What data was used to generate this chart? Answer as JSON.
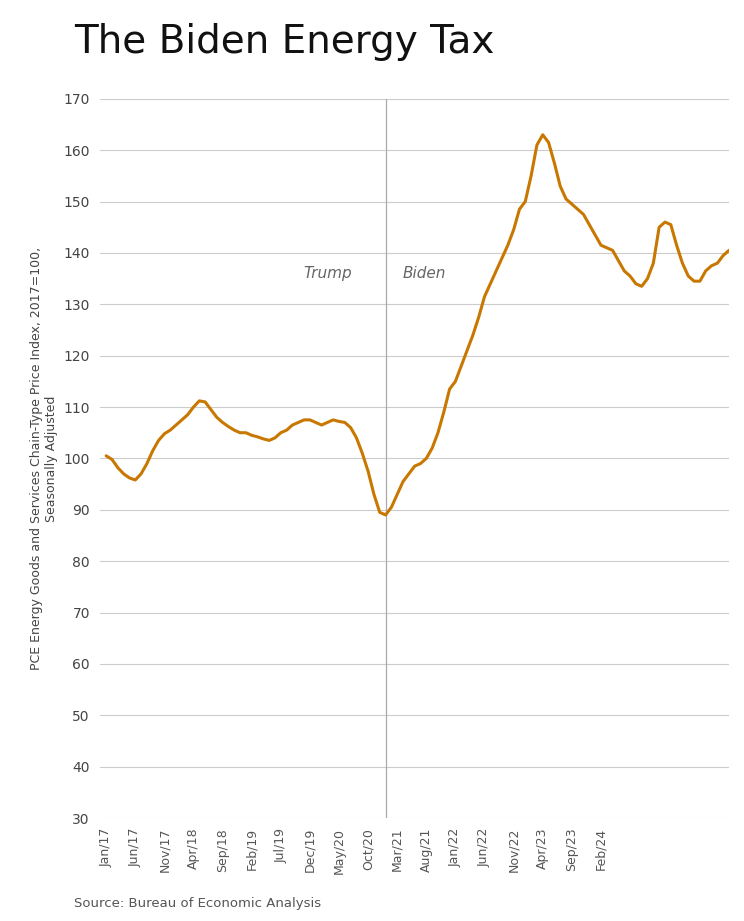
{
  "title": "The Biden Energy Tax",
  "ylabel": "PCE Energy Goods and Services Chain-Type Price Index, 2017=100,\nSeasonally Adjusted",
  "source": "Source: Bureau of Economic Analysis",
  "line_color": "#C87800",
  "background_color": "#ffffff",
  "grid_color": "#cccccc",
  "vline_color": "#aaaaaa",
  "ylim": [
    30,
    170
  ],
  "yticks": [
    30,
    40,
    50,
    60,
    70,
    80,
    90,
    100,
    110,
    120,
    130,
    140,
    150,
    160,
    170
  ],
  "trump_label": "Trump",
  "biden_label": "Biden",
  "vline_x_index": 48,
  "x_labels": [
    "Jan/17",
    "Jun/17",
    "Nov/17",
    "Apr/18",
    "Sep/18",
    "Feb/19",
    "Jul/19",
    "Dec/19",
    "May/20",
    "Oct/20",
    "Mar/21",
    "Aug/21",
    "Jan/22",
    "Jun/22",
    "Nov/22",
    "Apr/23",
    "Sep/23",
    "Feb/24"
  ],
  "x_label_indices": [
    0,
    5,
    10,
    15,
    20,
    25,
    30,
    35,
    40,
    45,
    50,
    55,
    60,
    65,
    70,
    75,
    80,
    85
  ],
  "values": [
    100.5,
    99.8,
    98.2,
    97.0,
    96.2,
    95.8,
    97.0,
    99.0,
    101.5,
    103.5,
    104.8,
    105.5,
    106.5,
    107.5,
    108.5,
    110.0,
    111.2,
    111.0,
    109.5,
    108.0,
    107.0,
    106.2,
    105.5,
    105.0,
    105.0,
    104.5,
    104.2,
    103.8,
    103.5,
    104.0,
    105.0,
    105.5,
    106.5,
    107.0,
    107.5,
    107.5,
    107.0,
    106.5,
    107.0,
    107.5,
    107.2,
    107.0,
    106.0,
    104.0,
    101.0,
    97.5,
    93.0,
    89.5,
    89.0,
    90.5,
    93.0,
    95.5,
    97.0,
    98.5,
    99.0,
    100.0,
    102.0,
    105.0,
    109.0,
    113.5,
    115.0,
    118.0,
    121.0,
    124.0,
    127.5,
    131.5,
    134.0,
    136.5,
    139.0,
    141.5,
    144.5,
    148.5,
    150.0,
    155.0,
    161.0,
    163.0,
    161.5,
    157.5,
    153.0,
    150.5,
    149.5,
    148.5,
    147.5,
    145.5,
    143.5,
    141.5,
    141.0,
    140.5,
    138.5,
    136.5,
    135.5,
    134.0,
    133.5,
    135.0,
    138.0,
    145.0,
    146.0,
    145.5,
    141.5,
    138.0,
    135.5,
    134.5,
    134.5,
    136.5,
    137.5,
    138.0,
    139.5,
    140.5
  ]
}
